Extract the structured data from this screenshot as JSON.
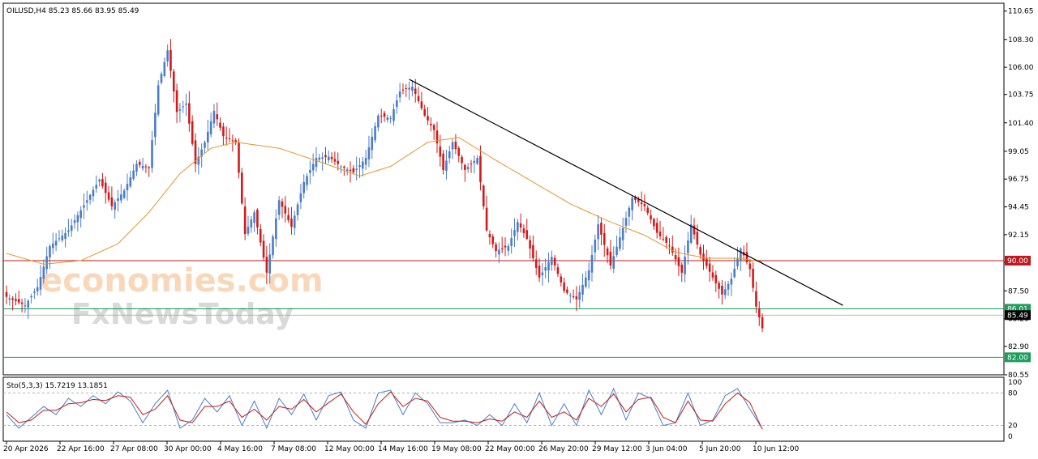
{
  "chart_data": {
    "type": "candlestick",
    "symbol_header": "OILUSD,H4  85.23 85.66 83.95 85.49",
    "stoch_header": "Sto(5,3,3) 15.7219 13.1851",
    "ylim": [
      80.55,
      111.3
    ],
    "y_ticks": [
      "110.65",
      "108.30",
      "106.00",
      "103.75",
      "101.40",
      "99.05",
      "96.75",
      "94.45",
      "92.15",
      "89.85",
      "87.50",
      "85.20",
      "82.90",
      "80.55"
    ],
    "x_ticks": [
      "20 Apr 2026",
      "22 Apr 16:00",
      "27 Apr 08:00",
      "30 Apr 00:00",
      "4 May 16:00",
      "7 May 08:00",
      "12 May 00:00",
      "14 May 16:00",
      "19 May 08:00",
      "22 May 00:00",
      "26 May 20:00",
      "29 May 12:00",
      "3 Jun 04:00",
      "5 Jun 20:00",
      "10 Jun 12:00"
    ],
    "stoch_ticks": [
      "100",
      "80",
      "20",
      "0"
    ],
    "levels": [
      {
        "name": "resistance",
        "value": 90.0,
        "label": "90.00",
        "color": "#c0181e"
      },
      {
        "name": "support-upper",
        "value": 86.01,
        "label": "86.01",
        "color": "#1a9e5a"
      },
      {
        "name": "support-lower",
        "value": 82.0,
        "label": "82.00",
        "color": "#1a9e5a"
      }
    ],
    "current": {
      "value": 85.49,
      "label": "85.49"
    },
    "trendline": {
      "from": {
        "index": 130,
        "price": 105.0
      },
      "to": {
        "index": 270,
        "price": 86.3
      }
    },
    "key_points": [
      [
        0,
        87.0
      ],
      [
        6,
        86.3
      ],
      [
        10,
        87.8
      ],
      [
        14,
        91.2
      ],
      [
        20,
        92.5
      ],
      [
        26,
        95.0
      ],
      [
        30,
        96.7
      ],
      [
        34,
        94.5
      ],
      [
        38,
        95.8
      ],
      [
        42,
        98.0
      ],
      [
        46,
        97.7
      ],
      [
        49,
        104.5
      ],
      [
        52,
        107.4
      ],
      [
        55,
        102.3
      ],
      [
        58,
        103.0
      ],
      [
        61,
        98.0
      ],
      [
        64,
        99.8
      ],
      [
        67,
        102.4
      ],
      [
        70,
        100.3
      ],
      [
        74,
        99.8
      ],
      [
        77,
        92.2
      ],
      [
        80,
        94.0
      ],
      [
        84,
        89.0
      ],
      [
        88,
        95.0
      ],
      [
        92,
        92.8
      ],
      [
        96,
        96.5
      ],
      [
        100,
        98.5
      ],
      [
        104,
        98.6
      ],
      [
        108,
        97.8
      ],
      [
        112,
        97.3
      ],
      [
        116,
        98.5
      ],
      [
        120,
        102.0
      ],
      [
        124,
        101.8
      ],
      [
        127,
        104.0
      ],
      [
        131,
        104.4
      ],
      [
        135,
        102.0
      ],
      [
        138,
        100.8
      ],
      [
        141,
        97.5
      ],
      [
        144,
        99.8
      ],
      [
        148,
        97.5
      ],
      [
        152,
        98.5
      ],
      [
        155,
        92.5
      ],
      [
        158,
        90.8
      ],
      [
        162,
        91.2
      ],
      [
        165,
        93.2
      ],
      [
        168,
        91.8
      ],
      [
        172,
        88.6
      ],
      [
        176,
        90.3
      ],
      [
        180,
        87.5
      ],
      [
        184,
        86.8
      ],
      [
        188,
        89.2
      ],
      [
        191,
        93.0
      ],
      [
        195,
        89.6
      ],
      [
        199,
        92.7
      ],
      [
        202,
        95.2
      ],
      [
        206,
        94.5
      ],
      [
        210,
        92.3
      ],
      [
        214,
        91.2
      ],
      [
        218,
        89.0
      ],
      [
        221,
        93.0
      ],
      [
        224,
        90.5
      ],
      [
        228,
        88.6
      ],
      [
        231,
        87.2
      ],
      [
        234,
        88.5
      ],
      [
        237,
        91.0
      ],
      [
        240,
        89.3
      ],
      [
        242,
        86.2
      ],
      [
        244,
        84.4
      ]
    ],
    "ma_points": [
      [
        0,
        90.6
      ],
      [
        12,
        89.7
      ],
      [
        24,
        90.0
      ],
      [
        36,
        91.4
      ],
      [
        46,
        94.0
      ],
      [
        56,
        97.2
      ],
      [
        66,
        99.3
      ],
      [
        74,
        99.8
      ],
      [
        88,
        99.3
      ],
      [
        102,
        98.1
      ],
      [
        114,
        97.0
      ],
      [
        124,
        97.8
      ],
      [
        136,
        99.8
      ],
      [
        146,
        100.2
      ],
      [
        158,
        98.3
      ],
      [
        170,
        96.5
      ],
      [
        182,
        94.7
      ],
      [
        194,
        93.3
      ],
      [
        206,
        92.1
      ],
      [
        216,
        90.7
      ],
      [
        226,
        90.2
      ],
      [
        236,
        90.2
      ],
      [
        244,
        89.9
      ]
    ],
    "stoch_k_points": [
      [
        0,
        40
      ],
      [
        4,
        15
      ],
      [
        8,
        35
      ],
      [
        12,
        55
      ],
      [
        16,
        40
      ],
      [
        20,
        70
      ],
      [
        24,
        55
      ],
      [
        28,
        75
      ],
      [
        32,
        60
      ],
      [
        36,
        82
      ],
      [
        40,
        65
      ],
      [
        44,
        25
      ],
      [
        48,
        60
      ],
      [
        52,
        85
      ],
      [
        56,
        15
      ],
      [
        60,
        30
      ],
      [
        64,
        70
      ],
      [
        68,
        45
      ],
      [
        72,
        75
      ],
      [
        76,
        20
      ],
      [
        80,
        65
      ],
      [
        84,
        15
      ],
      [
        88,
        70
      ],
      [
        92,
        40
      ],
      [
        96,
        78
      ],
      [
        100,
        30
      ],
      [
        104,
        75
      ],
      [
        108,
        82
      ],
      [
        112,
        30
      ],
      [
        116,
        15
      ],
      [
        120,
        80
      ],
      [
        124,
        85
      ],
      [
        128,
        40
      ],
      [
        132,
        80
      ],
      [
        136,
        60
      ],
      [
        140,
        25
      ],
      [
        144,
        25
      ],
      [
        148,
        30
      ],
      [
        152,
        20
      ],
      [
        156,
        40
      ],
      [
        160,
        20
      ],
      [
        164,
        60
      ],
      [
        168,
        25
      ],
      [
        172,
        80
      ],
      [
        176,
        20
      ],
      [
        180,
        60
      ],
      [
        184,
        20
      ],
      [
        188,
        85
      ],
      [
        192,
        40
      ],
      [
        196,
        88
      ],
      [
        200,
        30
      ],
      [
        204,
        80
      ],
      [
        208,
        70
      ],
      [
        212,
        20
      ],
      [
        216,
        25
      ],
      [
        220,
        80
      ],
      [
        224,
        20
      ],
      [
        228,
        30
      ],
      [
        232,
        75
      ],
      [
        236,
        88
      ],
      [
        240,
        50
      ],
      [
        244,
        14
      ]
    ],
    "stoch_d_points": [
      [
        0,
        45
      ],
      [
        4,
        25
      ],
      [
        8,
        30
      ],
      [
        12,
        48
      ],
      [
        16,
        48
      ],
      [
        20,
        60
      ],
      [
        24,
        62
      ],
      [
        28,
        68
      ],
      [
        32,
        66
      ],
      [
        36,
        75
      ],
      [
        40,
        72
      ],
      [
        44,
        40
      ],
      [
        48,
        50
      ],
      [
        52,
        75
      ],
      [
        56,
        30
      ],
      [
        60,
        25
      ],
      [
        64,
        55
      ],
      [
        68,
        55
      ],
      [
        72,
        65
      ],
      [
        76,
        35
      ],
      [
        80,
        50
      ],
      [
        84,
        30
      ],
      [
        88,
        55
      ],
      [
        92,
        50
      ],
      [
        96,
        68
      ],
      [
        100,
        45
      ],
      [
        104,
        62
      ],
      [
        108,
        78
      ],
      [
        112,
        45
      ],
      [
        116,
        22
      ],
      [
        120,
        60
      ],
      [
        124,
        82
      ],
      [
        128,
        55
      ],
      [
        132,
        70
      ],
      [
        136,
        65
      ],
      [
        140,
        35
      ],
      [
        144,
        28
      ],
      [
        148,
        28
      ],
      [
        152,
        25
      ],
      [
        156,
        32
      ],
      [
        160,
        28
      ],
      [
        164,
        45
      ],
      [
        168,
        35
      ],
      [
        172,
        65
      ],
      [
        176,
        35
      ],
      [
        180,
        45
      ],
      [
        184,
        30
      ],
      [
        188,
        70
      ],
      [
        192,
        55
      ],
      [
        196,
        78
      ],
      [
        200,
        45
      ],
      [
        204,
        68
      ],
      [
        208,
        72
      ],
      [
        212,
        35
      ],
      [
        216,
        25
      ],
      [
        220,
        65
      ],
      [
        224,
        30
      ],
      [
        228,
        28
      ],
      [
        232,
        60
      ],
      [
        236,
        80
      ],
      [
        240,
        62
      ],
      [
        244,
        13
      ]
    ]
  },
  "watermark": {
    "brand_top": "economies.com",
    "brand_bottom": "FxNewsToday"
  },
  "colors": {
    "bull": "#4a7cc8",
    "bear": "#d11a1a",
    "ma": "#e1972d",
    "stoch_k": "#4a7cc8",
    "stoch_d": "#c21a1a",
    "trend": "#000000"
  }
}
